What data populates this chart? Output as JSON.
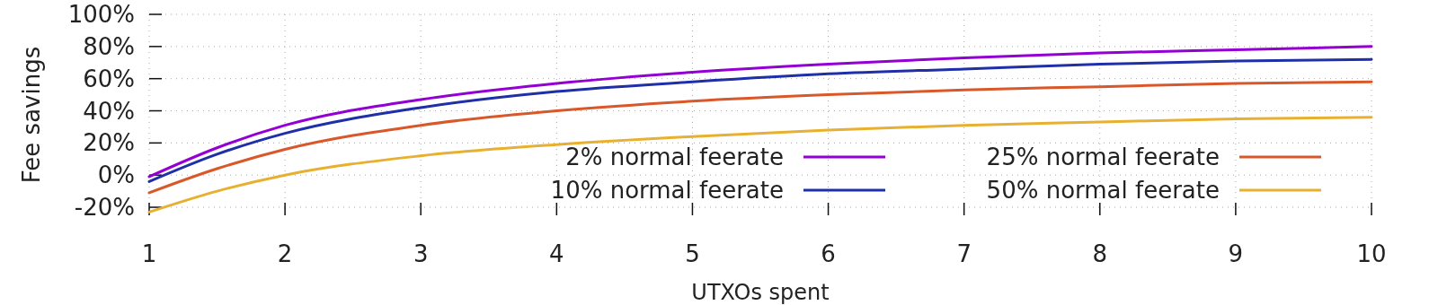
{
  "chart_data": {
    "type": "line",
    "xlabel": "UTXOs spent",
    "ylabel": "Fee savings",
    "x": [
      1,
      1.5,
      2,
      3,
      4,
      5,
      6,
      7,
      8,
      9,
      10
    ],
    "series": [
      {
        "name": "2% normal feerate",
        "color": "#9400d3",
        "values": [
          -1,
          17,
          31,
          47,
          57,
          64,
          69,
          73,
          76,
          78,
          80
        ]
      },
      {
        "name": "10% normal feerate",
        "color": "#1f2fa8",
        "values": [
          -4,
          13,
          26,
          42,
          52,
          58,
          63,
          66,
          69,
          71,
          72
        ]
      },
      {
        "name": "25% normal feerate",
        "color": "#d9582a",
        "values": [
          -11,
          4,
          16,
          31,
          40,
          46,
          50,
          53,
          55,
          57,
          58
        ]
      },
      {
        "name": "50% normal feerate",
        "color": "#e8b030",
        "values": [
          -23,
          -10,
          0,
          12,
          19,
          24,
          28,
          31,
          33,
          35,
          36
        ]
      }
    ],
    "xlim": [
      1,
      10
    ],
    "xticks": [
      1,
      2,
      3,
      4,
      5,
      6,
      7,
      8,
      9,
      10
    ],
    "ylim": [
      -25,
      100
    ],
    "yticks": [
      {
        "value": -20,
        "label": "-20%"
      },
      {
        "value": 0,
        "label": "0%"
      },
      {
        "value": 20,
        "label": "20%"
      },
      {
        "value": 40,
        "label": "40%"
      },
      {
        "value": 60,
        "label": "60%"
      },
      {
        "value": 80,
        "label": "80%"
      },
      {
        "value": 100,
        "label": "100%"
      }
    ],
    "grid": true,
    "legend": "bottom right",
    "marker": "none",
    "line_style": "solid"
  }
}
